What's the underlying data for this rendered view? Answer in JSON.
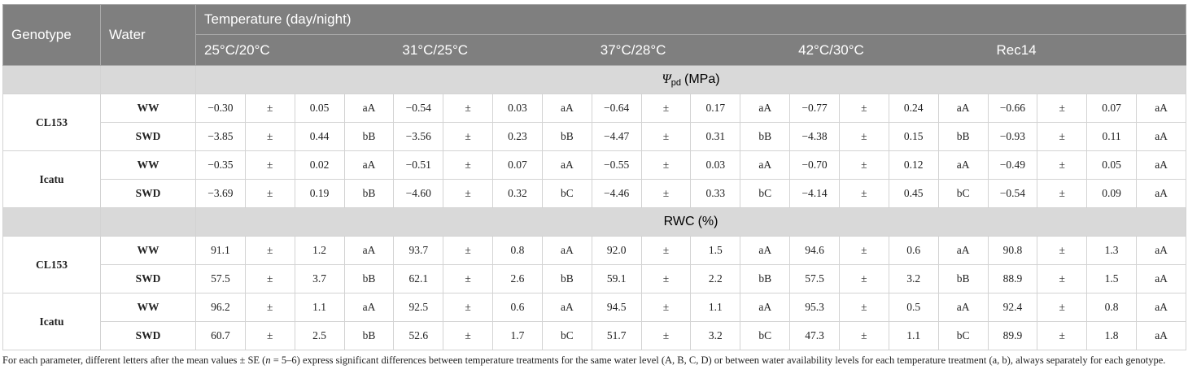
{
  "table": {
    "header": {
      "genotype": "Genotype",
      "water": "Water",
      "temperature": "Temperature (day/night)",
      "treatments": [
        "25°C/20°C",
        "31°C/25°C",
        "37°C/28°C",
        "42°C/30°C",
        "Rec14"
      ]
    },
    "sections": [
      {
        "symbol": "Ψ",
        "subscript": "pd",
        "unit": "(MPa)",
        "genotypes": [
          {
            "name": "CL153",
            "rows": [
              {
                "water": "WW",
                "cells": [
                  "−0.30",
                  "±",
                  "0.05",
                  "aA",
                  "−0.54",
                  "±",
                  "0.03",
                  "aA",
                  "−0.64",
                  "±",
                  "0.17",
                  "aA",
                  "−0.77",
                  "±",
                  "0.24",
                  "aA",
                  "−0.66",
                  "±",
                  "0.07",
                  "aA"
                ]
              },
              {
                "water": "SWD",
                "cells": [
                  "−3.85",
                  "±",
                  "0.44",
                  "bB",
                  "−3.56",
                  "±",
                  "0.23",
                  "bB",
                  "−4.47",
                  "±",
                  "0.31",
                  "bB",
                  "−4.38",
                  "±",
                  "0.15",
                  "bB",
                  "−0.93",
                  "±",
                  "0.11",
                  "aA"
                ]
              }
            ]
          },
          {
            "name": "Icatu",
            "rows": [
              {
                "water": "WW",
                "cells": [
                  "−0.35",
                  "±",
                  "0.02",
                  "aA",
                  "−0.51",
                  "±",
                  "0.07",
                  "aA",
                  "−0.55",
                  "±",
                  "0.03",
                  "aA",
                  "−0.70",
                  "±",
                  "0.12",
                  "aA",
                  "−0.49",
                  "±",
                  "0.05",
                  "aA"
                ]
              },
              {
                "water": "SWD",
                "cells": [
                  "−3.69",
                  "±",
                  "0.19",
                  "bB",
                  "−4.60",
                  "±",
                  "0.32",
                  "bC",
                  "−4.46",
                  "±",
                  "0.33",
                  "bC",
                  "−4.14",
                  "±",
                  "0.45",
                  "bC",
                  "−0.54",
                  "±",
                  "0.09",
                  "aA"
                ]
              }
            ]
          }
        ]
      },
      {
        "symbol": "RWC",
        "unit": "(%)",
        "genotypes": [
          {
            "name": "CL153",
            "rows": [
              {
                "water": "WW",
                "cells": [
                  "91.1",
                  "±",
                  "1.2",
                  "aA",
                  "93.7",
                  "±",
                  "0.8",
                  "aA",
                  "92.0",
                  "±",
                  "1.5",
                  "aA",
                  "94.6",
                  "±",
                  "0.6",
                  "aA",
                  "90.8",
                  "±",
                  "1.3",
                  "aA"
                ]
              },
              {
                "water": "SWD",
                "cells": [
                  "57.5",
                  "±",
                  "3.7",
                  "bB",
                  "62.1",
                  "±",
                  "2.6",
                  "bB",
                  "59.1",
                  "±",
                  "2.2",
                  "bB",
                  "57.5",
                  "±",
                  "3.2",
                  "bB",
                  "88.9",
                  "±",
                  "1.5",
                  "aA"
                ]
              }
            ]
          },
          {
            "name": "Icatu",
            "rows": [
              {
                "water": "WW",
                "cells": [
                  "96.2",
                  "±",
                  "1.1",
                  "aA",
                  "92.5",
                  "±",
                  "0.6",
                  "aA",
                  "94.5",
                  "±",
                  "1.1",
                  "aA",
                  "95.3",
                  "±",
                  "0.5",
                  "aA",
                  "92.4",
                  "±",
                  "0.8",
                  "aA"
                ]
              },
              {
                "water": "SWD",
                "cells": [
                  "60.7",
                  "±",
                  "2.5",
                  "bB",
                  "52.6",
                  "±",
                  "1.7",
                  "bC",
                  "51.7",
                  "±",
                  "3.2",
                  "bC",
                  "47.3",
                  "±",
                  "1.1",
                  "bC",
                  "89.9",
                  "±",
                  "1.8",
                  "aA"
                ]
              }
            ]
          }
        ]
      }
    ]
  },
  "footnote": {
    "before": "For each parameter, different letters after the mean values ± SE (",
    "italic": "n",
    "after": " = 5–6) express significant differences between temperature treatments for the same water level (A, B, C, D) or between water availability levels for each temperature treatment (a, b), always separately for each genotype."
  }
}
